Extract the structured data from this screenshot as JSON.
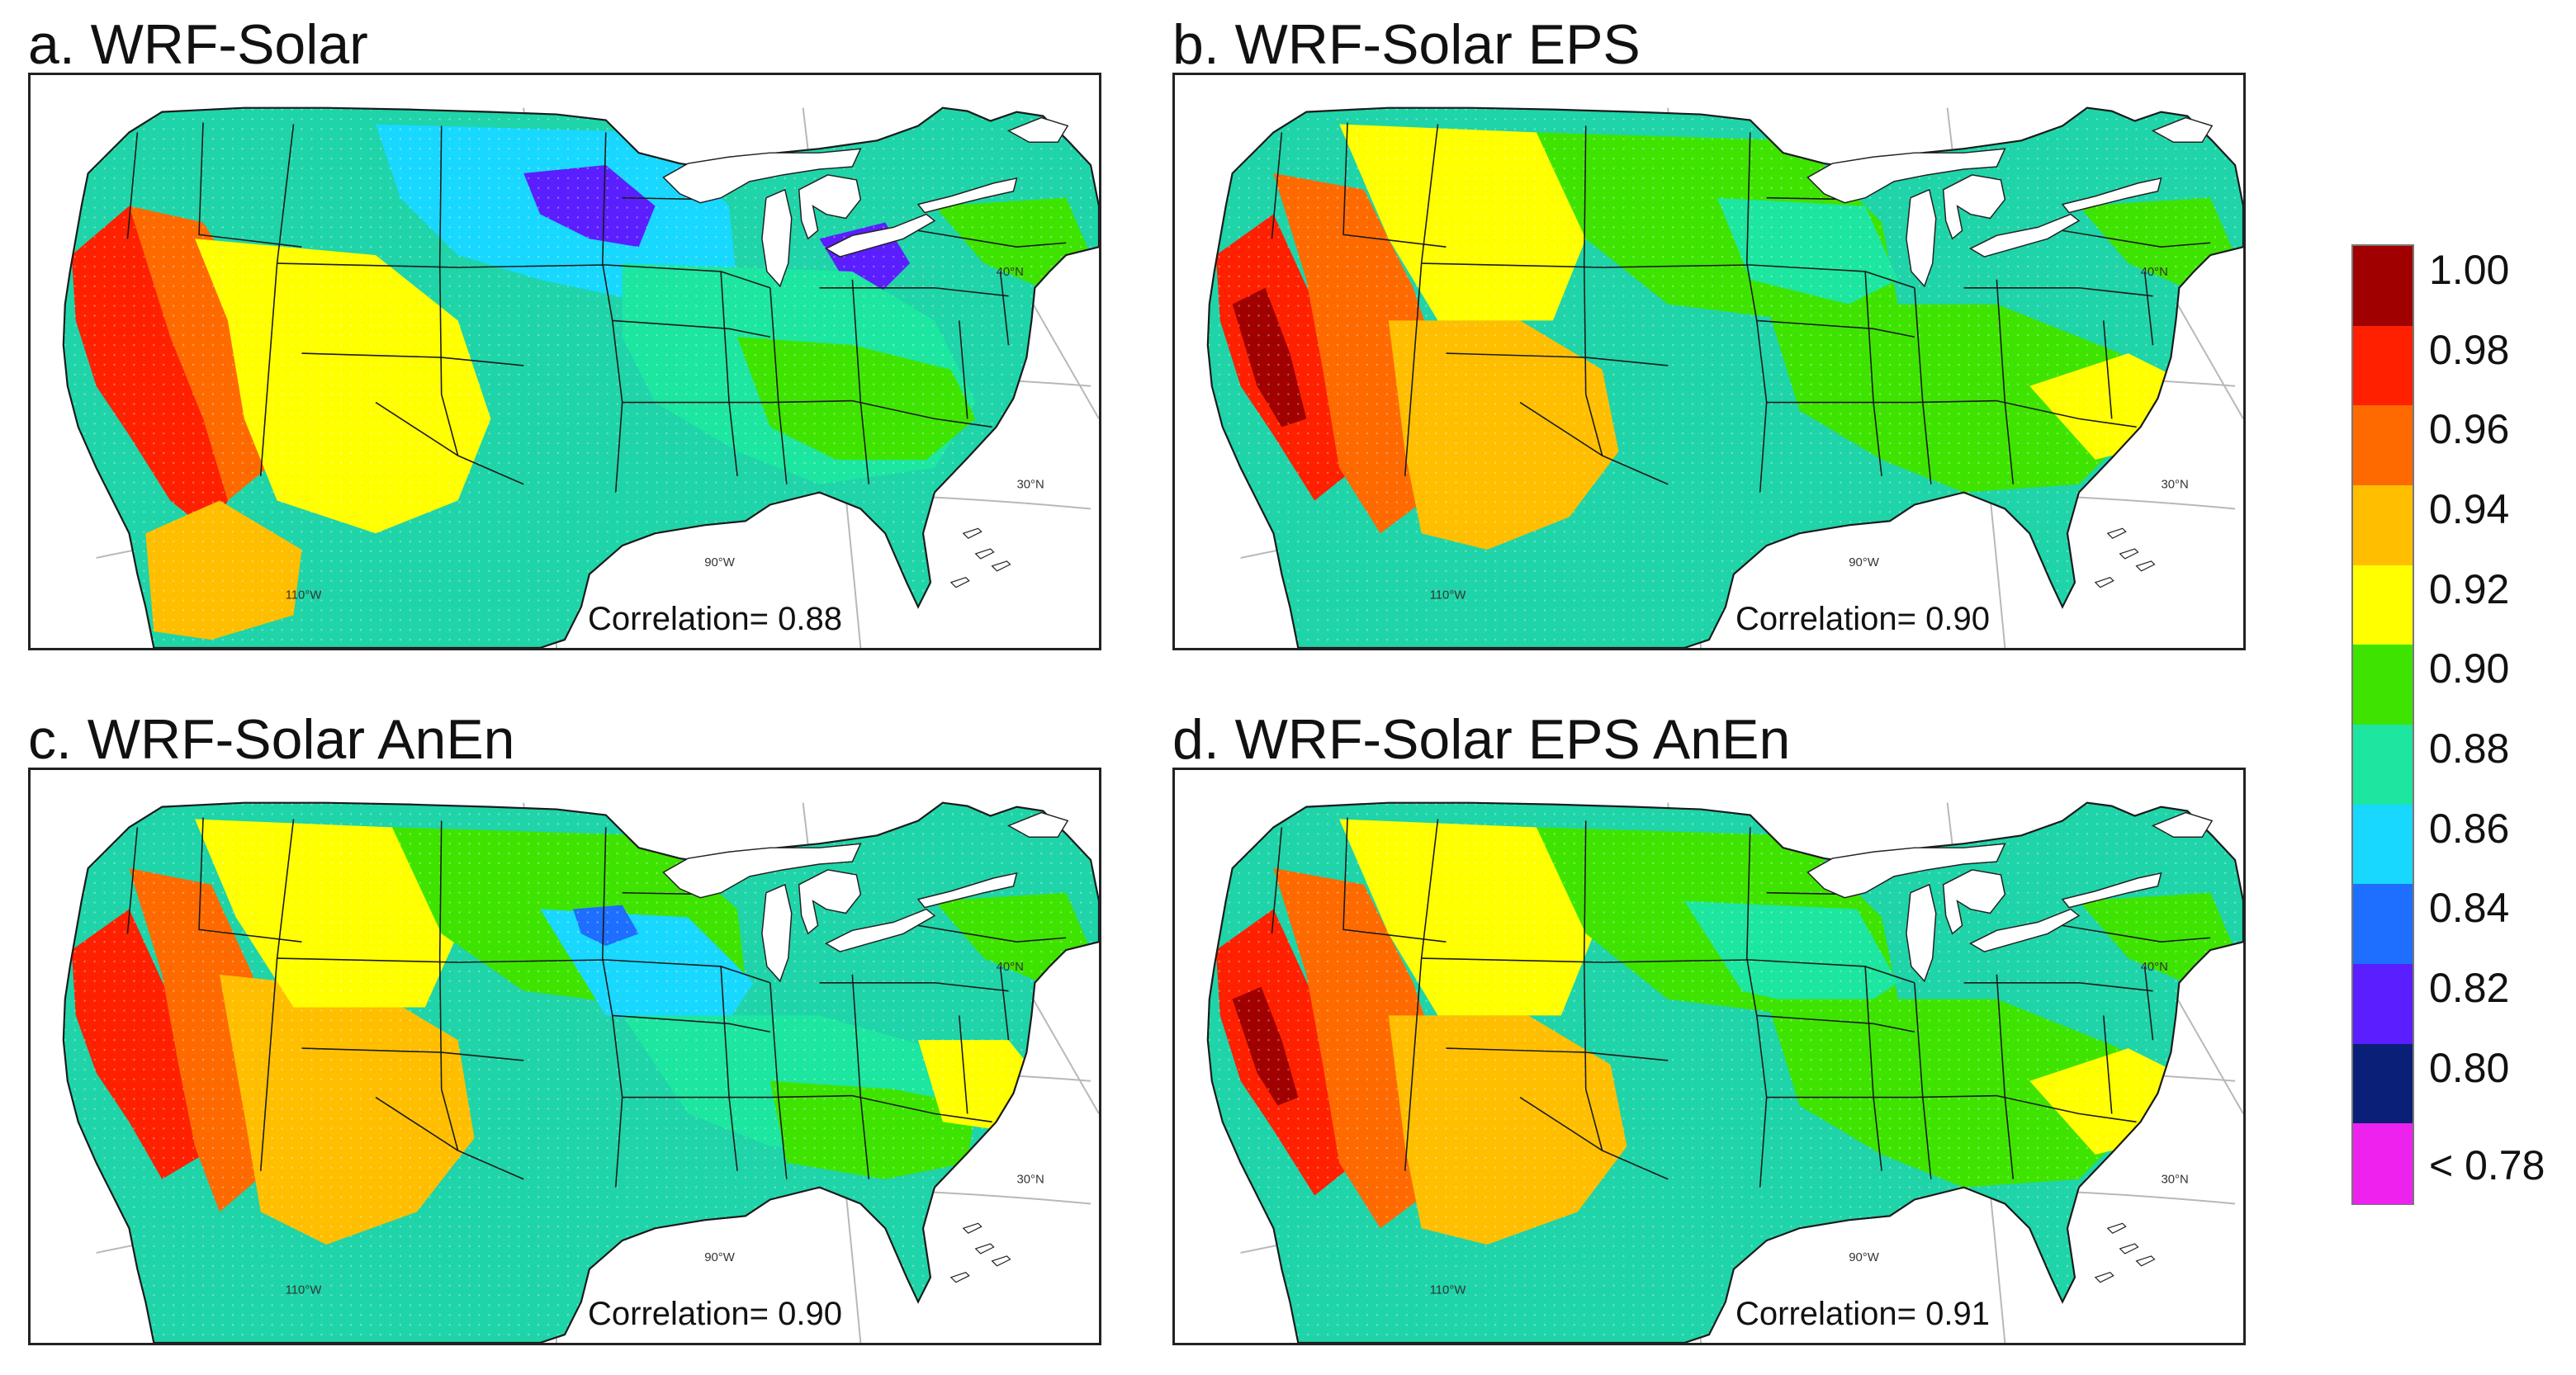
{
  "panels": [
    {
      "title": "a. WRF-Solar",
      "correlation_label": "Correlation= 0.88",
      "correlation": 0.88
    },
    {
      "title": "b. WRF-Solar EPS",
      "correlation_label": "Correlation= 0.90",
      "correlation": 0.9
    },
    {
      "title": "c. WRF-Solar AnEn",
      "correlation_label": "Correlation= 0.90",
      "correlation": 0.9
    },
    {
      "title": "d. WRF-Solar EPS AnEn",
      "correlation_label": "Correlation= 0.91",
      "correlation": 0.91
    }
  ],
  "map_labels": {
    "lat_40": "40°N",
    "lat_30": "30°N",
    "lon_90": "90°W",
    "lon_110": "110°W"
  },
  "colorbar": {
    "labels": [
      "1.00",
      "0.98",
      "0.96",
      "0.94",
      "0.92",
      "0.90",
      "0.88",
      "0.86",
      "0.84",
      "0.82",
      "0.80",
      "< 0.78"
    ],
    "colors": [
      "#a00000",
      "#ff2000",
      "#ff6a00",
      "#ffbf00",
      "#ffff00",
      "#3ee400",
      "#1ce6a0",
      "#18d8ff",
      "#1e6eff",
      "#5a1eff",
      "#0a1f78",
      "#ee22ee"
    ]
  },
  "colors": {
    "land_bg": "#1fd4a8",
    "lake": "#ffffff",
    "border": "#1a1a1a"
  }
}
